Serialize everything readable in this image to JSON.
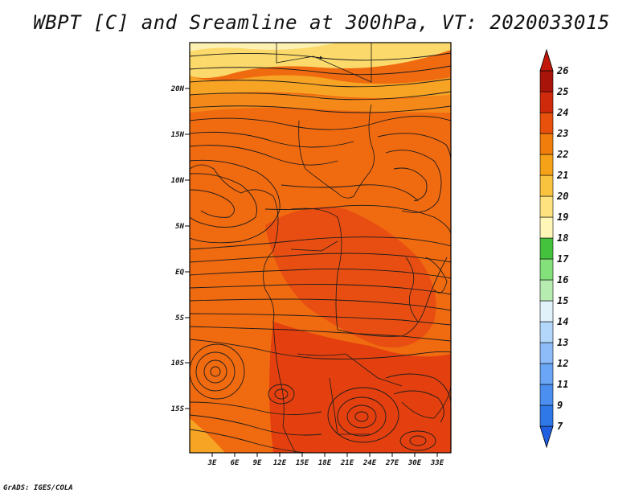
{
  "title": "WBPT [C] and Sreamline at 300hPa, VT: 2020033015",
  "footer": "GrADS: IGES/COLA",
  "map": {
    "lat_labels": [
      "20N",
      "15N",
      "10N",
      "5N",
      "EQ",
      "5S",
      "10S",
      "15S"
    ],
    "lon_labels": [
      "3E",
      "6E",
      "9E",
      "12E",
      "15E",
      "18E",
      "21E",
      "24E",
      "27E",
      "30E",
      "33E"
    ],
    "field": "wet-bulb potential temperature",
    "overlay": "streamlines"
  },
  "colorbar": {
    "levels": [
      "7",
      "9",
      "11",
      "12",
      "13",
      "14",
      "15",
      "16",
      "17",
      "18",
      "19",
      "20",
      "21",
      "22",
      "23",
      "24",
      "25",
      "26"
    ],
    "colors": [
      "#1f5fe0",
      "#2f78e8",
      "#4b8ff0",
      "#6aa6f5",
      "#8dbcf8",
      "#b3d6fb",
      "#e2f2fb",
      "#b7ecb0",
      "#84e07a",
      "#44c23d",
      "#fff6b8",
      "#fde27f",
      "#f9c33f",
      "#f5a218",
      "#f07d0c",
      "#e8510c",
      "#d02a0c",
      "#a8140a",
      "#c0190b"
    ]
  },
  "colors": {
    "dominant": "#f06a10",
    "warm_patches": "#e84a12",
    "north_band": "#fbd96a"
  }
}
